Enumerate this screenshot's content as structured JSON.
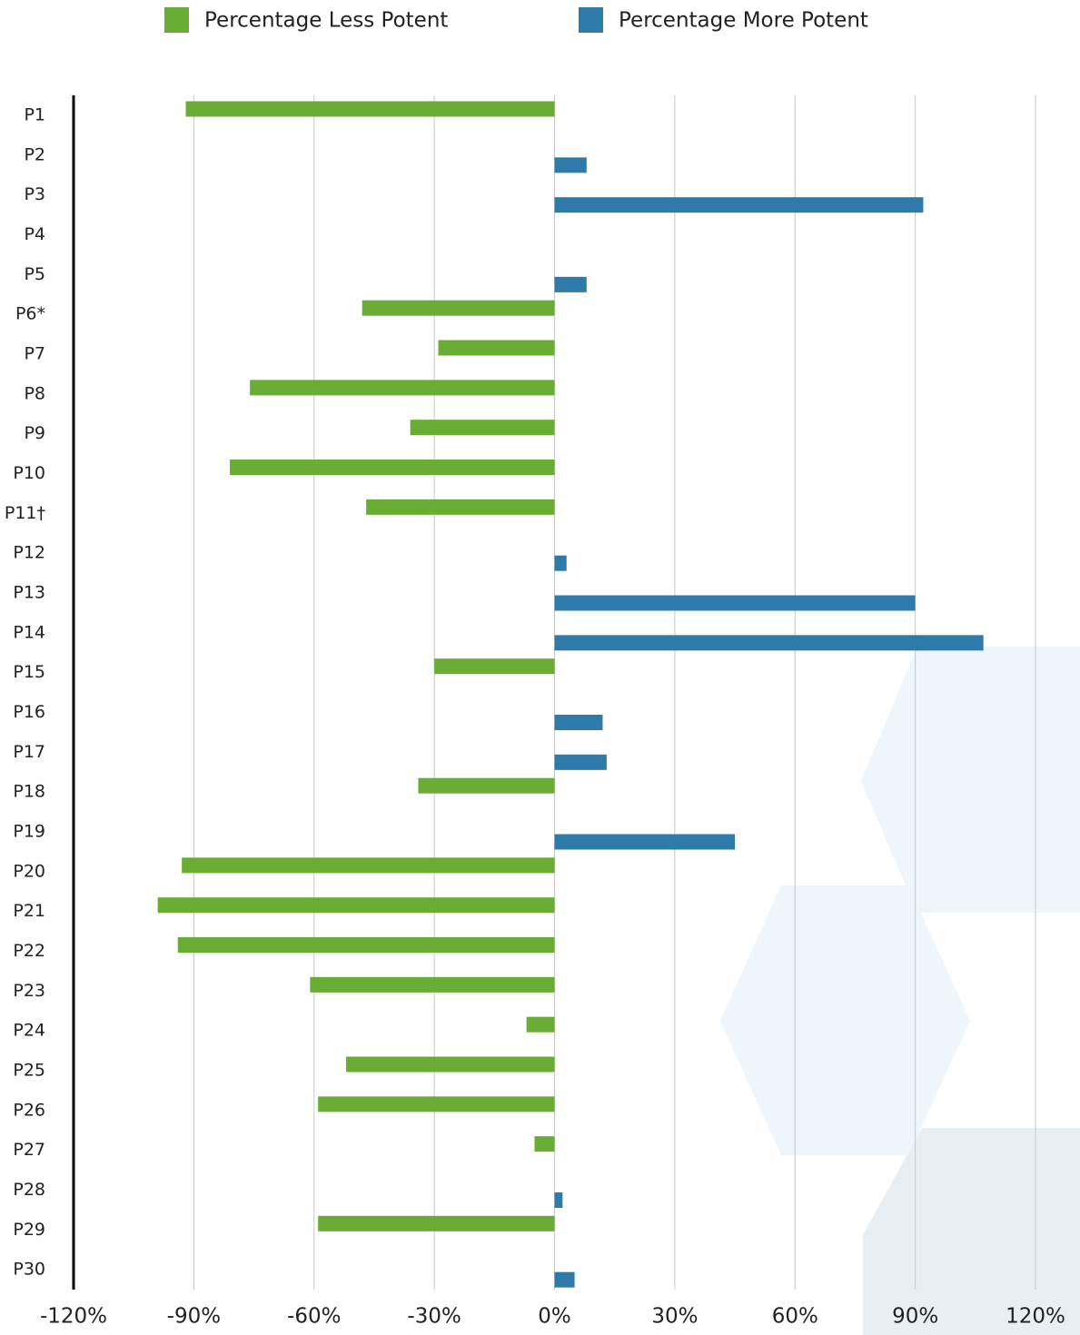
{
  "chart_data": {
    "type": "bar",
    "orientation": "horizontal",
    "categories": [
      "P1",
      "P2",
      "P3",
      "P4",
      "P5",
      "P6*",
      "P7",
      "P8",
      "P9",
      "P10",
      "P11†",
      "P12",
      "P13",
      "P14",
      "P15",
      "P16",
      "P17",
      "P18",
      "P19",
      "P20",
      "P21",
      "P22",
      "P23",
      "P24",
      "P25",
      "P26",
      "P27",
      "P28",
      "P29",
      "P30"
    ],
    "series": [
      {
        "name": "Percentage Less Potent",
        "color": "#6aad34",
        "values": [
          -92,
          null,
          null,
          null,
          null,
          -48,
          -29,
          -76,
          -36,
          -81,
          -47,
          null,
          null,
          null,
          -30,
          null,
          null,
          -34,
          null,
          -93,
          -99,
          -94,
          -61,
          -7,
          -52,
          -59,
          -5,
          null,
          -59,
          null
        ]
      },
      {
        "name": "Percentage More Potent",
        "color": "#2e7bab",
        "values": [
          null,
          8,
          92,
          null,
          8,
          null,
          null,
          null,
          null,
          null,
          null,
          3,
          90,
          107,
          null,
          12,
          13,
          null,
          45,
          null,
          null,
          null,
          null,
          null,
          null,
          null,
          null,
          2,
          null,
          5
        ]
      }
    ],
    "xlim": [
      -120,
      120
    ],
    "xticks": [
      {
        "value": -120,
        "label": "-120%"
      },
      {
        "value": -90,
        "label": "-90%"
      },
      {
        "value": -60,
        "label": "-60%"
      },
      {
        "value": -30,
        "label": "-30%"
      },
      {
        "value": 0,
        "label": "0%"
      },
      {
        "value": 30,
        "label": "30%"
      },
      {
        "value": 60,
        "label": "60%"
      },
      {
        "value": 90,
        "label": "90%"
      },
      {
        "value": 120,
        "label": "120%"
      }
    ],
    "grid": true,
    "legend": "top"
  }
}
